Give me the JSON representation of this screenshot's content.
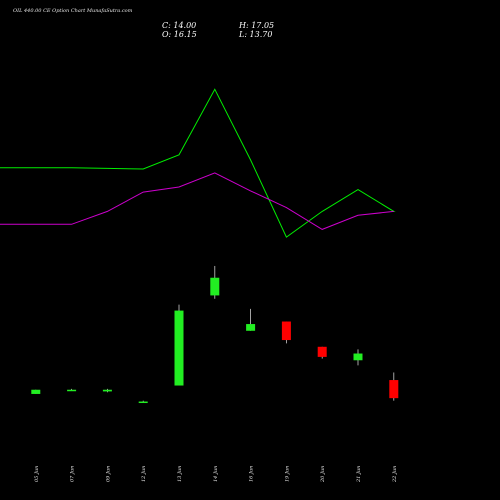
{
  "header": {
    "title": "OIL 440.00 CE Option  Chart MunafaSutra.com",
    "close": "C: 14.00",
    "open": "O: 16.15",
    "high": "H: 17.05",
    "low": "L: 13.70"
  },
  "colors": {
    "background": "#000000",
    "up": "#22ee22",
    "down": "#ff0000",
    "line_upper": "#00ee00",
    "line_lower": "#cc00cc"
  },
  "chart_data": {
    "type": "candlestick",
    "categories": [
      "05 Jun",
      "07 Jun",
      "09 Jun",
      "12 Jun",
      "13 Jun",
      "14 Jun",
      "16 Jun",
      "19 Jun",
      "20 Jun",
      "21 Jun",
      "22 Jun"
    ],
    "series": [
      {
        "values": [
          16.4,
          16.4,
          16.35,
          16.3,
          17.4,
          22.5,
          17.0,
          11.0,
          13.0,
          14.7,
          13.0
        ]
      },
      {
        "values": [
          12.0,
          12.0,
          13.0,
          14.5,
          14.9,
          16.0,
          14.6,
          13.3,
          11.6,
          12.7,
          13.0
        ]
      }
    ],
    "candles": [
      {
        "open": 14.5,
        "high": 15.0,
        "low": 14.5,
        "close": 15.0
      },
      {
        "open": 15.0,
        "high": 15.1,
        "low": 14.9,
        "close": 15.0
      },
      {
        "open": 14.8,
        "high": 15.1,
        "low": 14.7,
        "close": 15.0
      },
      {
        "open": 13.6,
        "high": 13.7,
        "low": 13.5,
        "close": 13.6
      },
      {
        "open": 15.5,
        "high": 25.1,
        "low": 15.5,
        "close": 24.4
      },
      {
        "open": 26.2,
        "high": 29.7,
        "low": 25.8,
        "close": 28.3
      },
      {
        "open": 22.0,
        "high": 24.6,
        "low": 22.0,
        "close": 22.8
      },
      {
        "open": 23.1,
        "high": 23.1,
        "low": 20.5,
        "close": 20.9
      },
      {
        "open": 20.1,
        "high": 20.1,
        "low": 18.7,
        "close": 18.9
      },
      {
        "open": 18.5,
        "high": 19.8,
        "low": 17.9,
        "close": 19.3
      },
      {
        "open": 16.15,
        "high": 17.05,
        "low": 13.7,
        "close": 14.0
      }
    ]
  }
}
